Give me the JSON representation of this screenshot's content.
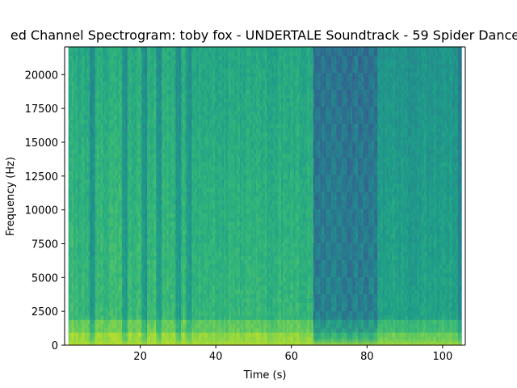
{
  "chart_data": {
    "type": "heatmap",
    "title": "ed Channel Spectrogram: toby fox - UNDERTALE Soundtrack - 59 Spider Dance",
    "xlabel": "Time (s)",
    "ylabel": "Frequency (Hz)",
    "xlim": [
      0,
      106
    ],
    "ylim": [
      0,
      22050
    ],
    "xticks": [
      20,
      40,
      60,
      80,
      100
    ],
    "xtick_labels": [
      "20",
      "40",
      "60",
      "80",
      "100"
    ],
    "yticks": [
      0,
      2500,
      5000,
      7500,
      10000,
      12500,
      15000,
      17500,
      20000
    ],
    "ytick_labels": [
      "0",
      "2500",
      "5000",
      "7500",
      "10000",
      "12500",
      "15000",
      "17500",
      "20000"
    ],
    "colormap": "viridis",
    "grid": false,
    "segments": [
      {
        "start": 0,
        "end": 33,
        "level": 0.68,
        "note": "rhythmic section with darker vertical stripes"
      },
      {
        "start": 33,
        "end": 66,
        "level": 0.66,
        "note": "dense section"
      },
      {
        "start": 66,
        "end": 83,
        "level": 0.48,
        "note": "sparse checkered section"
      },
      {
        "start": 83,
        "end": 105,
        "level": 0.58,
        "note": "mid-level section"
      }
    ],
    "dark_stripes": [
      7,
      15.5,
      21,
      24.5,
      30,
      32.5,
      104.5
    ]
  }
}
